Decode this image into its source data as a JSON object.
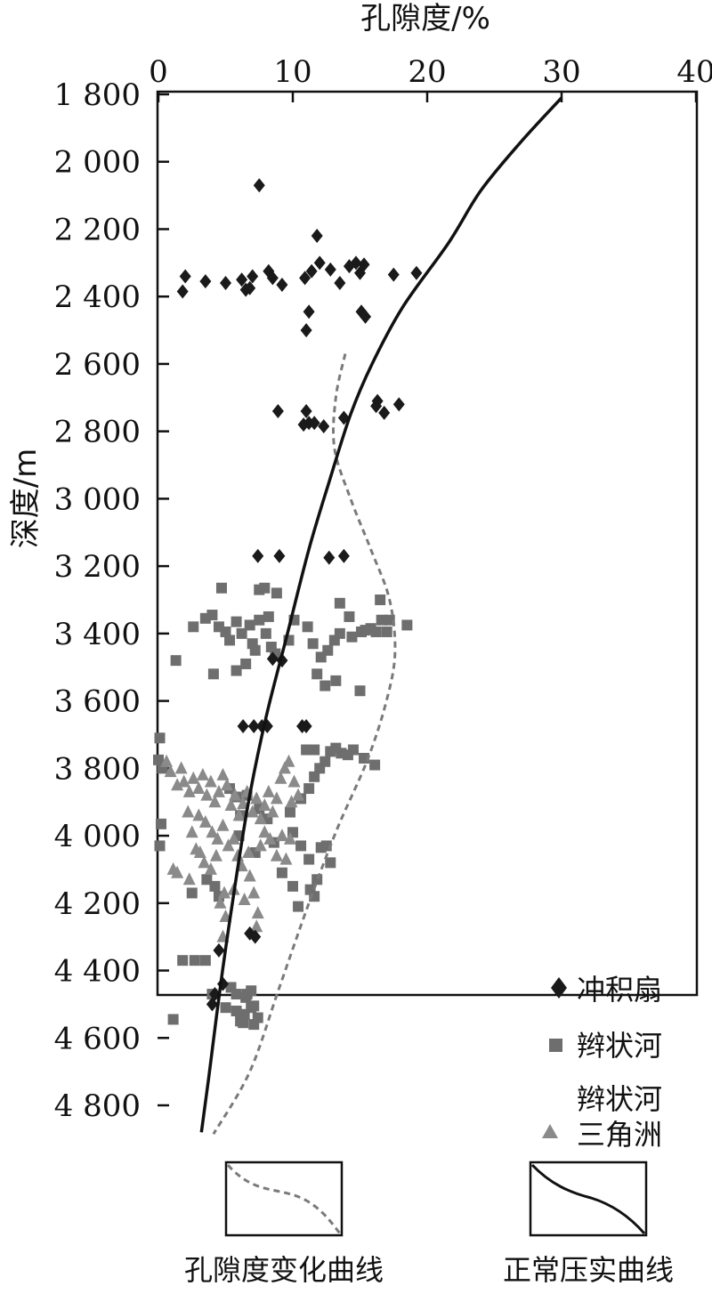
{
  "chart_data": {
    "type": "scatter",
    "xlabel": "孔隙度/%",
    "ylabel": "深度/m",
    "xlim": [
      0,
      40
    ],
    "ylim": [
      1800,
      5000
    ],
    "x_axis_position": "top",
    "y_axis_inverted": true,
    "x_ticks": [
      0,
      10,
      20,
      30,
      40
    ],
    "x_tick_labels": [
      "0",
      "10",
      "20",
      "30",
      "40"
    ],
    "y_ticks": [
      1800,
      2000,
      2200,
      2400,
      2600,
      2800,
      3000,
      3200,
      3400,
      3600,
      3800,
      4000,
      4200,
      4400,
      4600,
      4800
    ],
    "y_tick_labels": [
      "1 800",
      "2 000",
      "2 200",
      "2 400",
      "2 600",
      "2 800",
      "3 000",
      "3 200",
      "3 400",
      "3 600",
      "3 800",
      "4 000",
      "4 200",
      "4 400",
      "4 600",
      "4 800"
    ],
    "grid": false,
    "legend_position": "bottom-right inside plot",
    "colors": {
      "alluvial": "#1a1a1a",
      "braided": "#6e6e6e",
      "delta": "#8a8a8a",
      "porosity_curve": "#7a7a7a",
      "compaction_curve": "#111111"
    },
    "series": [
      {
        "name": "冲积扇",
        "marker": "diamond",
        "points": [
          [
            7.5,
            2070
          ],
          [
            2,
            2340
          ],
          [
            1.8,
            2385
          ],
          [
            3.5,
            2355
          ],
          [
            5,
            2360
          ],
          [
            6.2,
            2350
          ],
          [
            6.5,
            2380
          ],
          [
            7,
            2340
          ],
          [
            6.8,
            2375
          ],
          [
            8.2,
            2325
          ],
          [
            8.5,
            2345
          ],
          [
            9.2,
            2365
          ],
          [
            10.9,
            2345
          ],
          [
            11.4,
            2325
          ],
          [
            11.8,
            2220
          ],
          [
            12,
            2300
          ],
          [
            12.8,
            2320
          ],
          [
            13.5,
            2360
          ],
          [
            14.2,
            2310
          ],
          [
            14.7,
            2300
          ],
          [
            15.3,
            2305
          ],
          [
            15,
            2330
          ],
          [
            17.5,
            2335
          ],
          [
            19.2,
            2330
          ],
          [
            11.2,
            2445
          ],
          [
            11,
            2500
          ],
          [
            15.1,
            2445
          ],
          [
            15.4,
            2460
          ],
          [
            8.9,
            2740
          ],
          [
            11,
            2740
          ],
          [
            11.2,
            2775
          ],
          [
            10.8,
            2780
          ],
          [
            11.6,
            2775
          ],
          [
            12.3,
            2785
          ],
          [
            13.8,
            2760
          ],
          [
            16.3,
            2710
          ],
          [
            16.2,
            2725
          ],
          [
            16.8,
            2745
          ],
          [
            17.9,
            2720
          ],
          [
            7.4,
            3170
          ],
          [
            9,
            3170
          ],
          [
            12.7,
            3175
          ],
          [
            13.8,
            3170
          ],
          [
            8.5,
            3475
          ],
          [
            9.2,
            3480
          ],
          [
            6.3,
            3675
          ],
          [
            7.1,
            3675
          ],
          [
            7.7,
            3675
          ],
          [
            8.1,
            3675
          ],
          [
            10.7,
            3675
          ],
          [
            11,
            3675
          ],
          [
            6.8,
            4290
          ],
          [
            7.2,
            4300
          ],
          [
            4.5,
            4340
          ],
          [
            4.8,
            4440
          ],
          [
            4.2,
            4470
          ],
          [
            4,
            4500
          ]
        ]
      },
      {
        "name": "辫状河",
        "marker": "square",
        "points": [
          [
            4.7,
            3265
          ],
          [
            2.6,
            3380
          ],
          [
            3.5,
            3355
          ],
          [
            4,
            3345
          ],
          [
            4.5,
            3380
          ],
          [
            5,
            3395
          ],
          [
            5.3,
            3420
          ],
          [
            5.8,
            3365
          ],
          [
            6.2,
            3400
          ],
          [
            6.8,
            3375
          ],
          [
            7,
            3430
          ],
          [
            7.2,
            3450
          ],
          [
            7.5,
            3360
          ],
          [
            8,
            3400
          ],
          [
            8.4,
            3440
          ],
          [
            8.7,
            3460
          ],
          [
            8.2,
            3350
          ],
          [
            7.5,
            3270
          ],
          [
            7.9,
            3265
          ],
          [
            8.8,
            3280
          ],
          [
            6.5,
            3490
          ],
          [
            4.1,
            3520
          ],
          [
            5.8,
            3510
          ],
          [
            1.3,
            3480
          ],
          [
            9.7,
            3420
          ],
          [
            10.1,
            3360
          ],
          [
            11.1,
            3380
          ],
          [
            11.5,
            3430
          ],
          [
            12.1,
            3470
          ],
          [
            12.6,
            3450
          ],
          [
            13.1,
            3420
          ],
          [
            11.8,
            3520
          ],
          [
            12.4,
            3555
          ],
          [
            13.2,
            3540
          ],
          [
            13.5,
            3310
          ],
          [
            13.5,
            3400
          ],
          [
            14.4,
            3410
          ],
          [
            15.1,
            3395
          ],
          [
            15.4,
            3390
          ],
          [
            15.8,
            3385
          ],
          [
            16.2,
            3395
          ],
          [
            16.6,
            3360
          ],
          [
            17.2,
            3360
          ],
          [
            16.5,
            3300
          ],
          [
            17,
            3395
          ],
          [
            18.5,
            3375
          ],
          [
            15,
            3570
          ],
          [
            14.2,
            3350
          ],
          [
            15.3,
            3770
          ],
          [
            16.1,
            3790
          ],
          [
            0.1,
            3710
          ],
          [
            0,
            3775
          ],
          [
            0.3,
            3800
          ],
          [
            0.2,
            3965
          ],
          [
            0.1,
            4030
          ],
          [
            5.3,
            3860
          ],
          [
            5.8,
            3885
          ],
          [
            6.6,
            3880
          ],
          [
            6.1,
            3940
          ],
          [
            7.5,
            3920
          ],
          [
            8.1,
            3950
          ],
          [
            8.6,
            4020
          ],
          [
            7.2,
            4050
          ],
          [
            6,
            4000
          ],
          [
            9.8,
            3930
          ],
          [
            10.6,
            3890
          ],
          [
            11.2,
            3860
          ],
          [
            11.6,
            3825
          ],
          [
            12,
            3800
          ],
          [
            12.4,
            3780
          ],
          [
            12.8,
            3750
          ],
          [
            13.2,
            3740
          ],
          [
            13.6,
            3755
          ],
          [
            14.1,
            3760
          ],
          [
            14.5,
            3745
          ],
          [
            11,
            3745
          ],
          [
            11.6,
            3745
          ],
          [
            10,
            3990
          ],
          [
            10.6,
            4030
          ],
          [
            11.2,
            4070
          ],
          [
            12.1,
            4035
          ],
          [
            12.5,
            4030
          ],
          [
            9.2,
            4110
          ],
          [
            10,
            4150
          ],
          [
            10.4,
            4210
          ],
          [
            11.3,
            4160
          ],
          [
            11.8,
            4130
          ],
          [
            11.6,
            4180
          ],
          [
            12.8,
            4080
          ],
          [
            4.5,
            4180
          ],
          [
            4.2,
            4150
          ],
          [
            3.6,
            4130
          ],
          [
            2.5,
            4170
          ],
          [
            1.8,
            4370
          ],
          [
            2.7,
            4370
          ],
          [
            3.5,
            4370
          ],
          [
            4,
            4470
          ],
          [
            5.4,
            4450
          ],
          [
            5.8,
            4470
          ],
          [
            6.5,
            4480
          ],
          [
            6.9,
            4460
          ],
          [
            7.1,
            4505
          ],
          [
            7.4,
            4540
          ],
          [
            6.9,
            4510
          ],
          [
            6.4,
            4530
          ],
          [
            6.1,
            4550
          ],
          [
            5.8,
            4520
          ],
          [
            6.3,
            4555
          ],
          [
            7.1,
            4560
          ],
          [
            5,
            4510
          ],
          [
            1.1,
            4545
          ],
          [
            6.6,
            4470
          ]
        ]
      },
      {
        "name": "辫状河三角洲",
        "marker": "triangle",
        "points": [
          [
            0.6,
            3780
          ],
          [
            0.9,
            3810
          ],
          [
            1.7,
            3800
          ],
          [
            1.4,
            3850
          ],
          [
            1.9,
            3840
          ],
          [
            2.3,
            3870
          ],
          [
            2.6,
            3830
          ],
          [
            3,
            3860
          ],
          [
            3.3,
            3820
          ],
          [
            3.6,
            3880
          ],
          [
            3.9,
            3840
          ],
          [
            4.2,
            3900
          ],
          [
            4.5,
            3870
          ],
          [
            4.8,
            3820
          ],
          [
            5.1,
            3850
          ],
          [
            5.4,
            3910
          ],
          [
            5.7,
            3880
          ],
          [
            6,
            3940
          ],
          [
            6.3,
            3905
          ],
          [
            6.6,
            3870
          ],
          [
            7,
            3930
          ],
          [
            7.3,
            3890
          ],
          [
            7.6,
            3950
          ],
          [
            7.9,
            3910
          ],
          [
            8.2,
            3870
          ],
          [
            8.5,
            3930
          ],
          [
            8.8,
            3890
          ],
          [
            9.1,
            3830
          ],
          [
            9.4,
            3800
          ],
          [
            9.7,
            3780
          ],
          [
            10.1,
            3840
          ],
          [
            10.4,
            3880
          ],
          [
            9.9,
            3900
          ],
          [
            3,
            3940
          ],
          [
            3.5,
            3960
          ],
          [
            4,
            3990
          ],
          [
            4.4,
            4010
          ],
          [
            4.8,
            3970
          ],
          [
            5.2,
            4030
          ],
          [
            5.6,
            4010
          ],
          [
            3.1,
            4050
          ],
          [
            3.4,
            4080
          ],
          [
            3.9,
            4100
          ],
          [
            4.3,
            4060
          ],
          [
            2.2,
            3930
          ],
          [
            2.5,
            3990
          ],
          [
            2.8,
            4040
          ],
          [
            2.3,
            4130
          ],
          [
            1.4,
            4110
          ],
          [
            1.1,
            4100
          ],
          [
            4.6,
            4200
          ],
          [
            5,
            4240
          ],
          [
            4.9,
            4170
          ],
          [
            5.6,
            4160
          ],
          [
            4.8,
            4300
          ],
          [
            7.1,
            4170
          ],
          [
            7.4,
            4230
          ],
          [
            7.3,
            4270
          ],
          [
            6.8,
            4120
          ],
          [
            6.4,
            4190
          ],
          [
            7.6,
            4030
          ],
          [
            8.3,
            4010
          ],
          [
            8.8,
            4060
          ],
          [
            9.2,
            4000
          ],
          [
            7.9,
            3990
          ],
          [
            5.9,
            4060
          ],
          [
            6.2,
            4090
          ],
          [
            6.7,
            4050
          ],
          [
            9.5,
            4070
          ],
          [
            9.8,
            4010
          ]
        ]
      }
    ],
    "curves": [
      {
        "name": "孔隙度变化曲线",
        "style": "dashed",
        "points": [
          [
            13.9,
            2570
          ],
          [
            13.2,
            2700
          ],
          [
            13.1,
            2850
          ],
          [
            14.3,
            3000
          ],
          [
            15.8,
            3150
          ],
          [
            17.2,
            3300
          ],
          [
            17.6,
            3460
          ],
          [
            16.9,
            3610
          ],
          [
            15.5,
            3780
          ],
          [
            13.3,
            3980
          ],
          [
            11.2,
            4200
          ],
          [
            9,
            4450
          ],
          [
            6.8,
            4700
          ],
          [
            4.1,
            4885
          ]
        ]
      },
      {
        "name": "正常压实曲线",
        "style": "solid",
        "points": [
          [
            30,
            1810
          ],
          [
            27,
            1940
          ],
          [
            24,
            2085
          ],
          [
            21.6,
            2240
          ],
          [
            18.2,
            2430
          ],
          [
            15.9,
            2600
          ],
          [
            14.3,
            2750
          ],
          [
            12.7,
            2950
          ],
          [
            11.2,
            3150
          ],
          [
            9.6,
            3400
          ],
          [
            8,
            3650
          ],
          [
            6.7,
            3900
          ],
          [
            5.5,
            4200
          ],
          [
            4.6,
            4450
          ],
          [
            3.8,
            4700
          ],
          [
            3.2,
            4880
          ]
        ]
      }
    ]
  },
  "axes": {
    "x_title": "孔隙度/%",
    "y_title": "深度/m"
  },
  "legend": {
    "alluvial_label": "冲积扇",
    "braided_label": "辫状河",
    "delta_label_line1": "辫状河",
    "delta_label_line2": "三角洲"
  },
  "bottom_legend": {
    "porosity_label": "孔隙度变化曲线",
    "compaction_label": "正常压实曲线"
  }
}
